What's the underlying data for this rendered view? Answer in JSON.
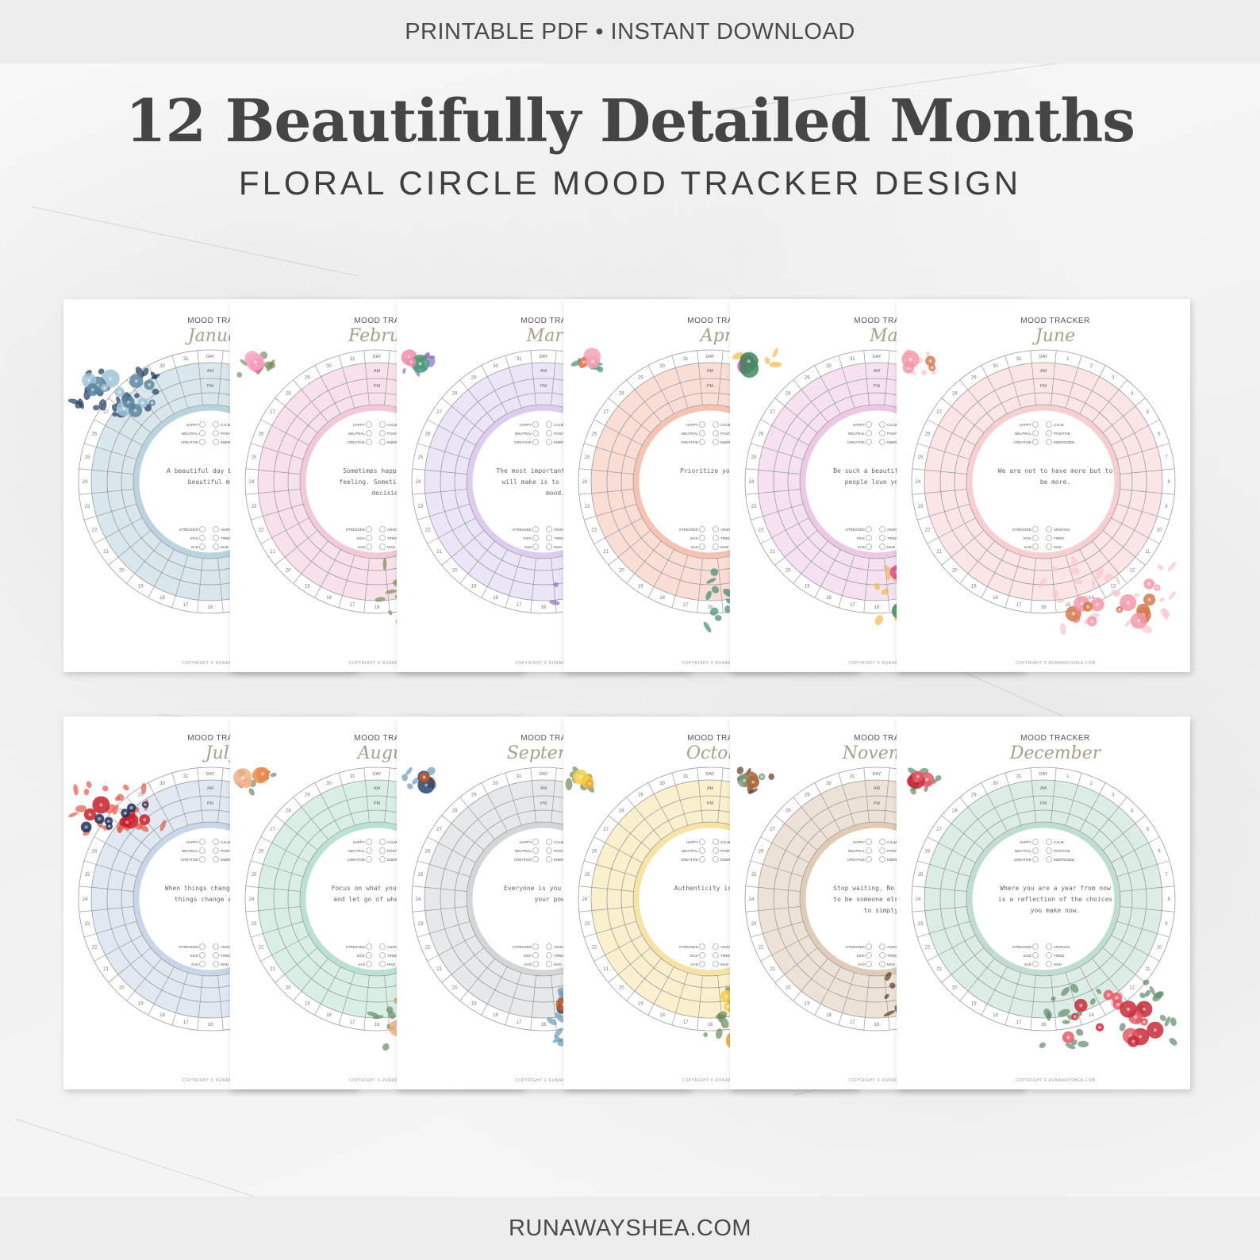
{
  "banner": {
    "top_text": "PRINTABLE PDF • INSTANT DOWNLOAD",
    "bottom_text": "RUNAWAYSHEA.COM"
  },
  "headline": "12 Beautifully Detailed Months",
  "subheadline": "FLORAL CIRCLE MOOD TRACKER DESIGN",
  "tracker": {
    "title": "MOOD TRACKER",
    "ring_labels": {
      "day": "DAY",
      "am": "AM",
      "pm": "PM"
    },
    "moods_top": [
      "HAPPY",
      "CALM",
      "NEUTRAL",
      "POSITIVE",
      "CREATIVE",
      "ENERGIZED"
    ],
    "moods_bottom": [
      "STRESSED",
      "ANXIOUS",
      "SICK",
      "TIRED",
      "SAD",
      "MAD"
    ],
    "copyright": "COPYRIGHT © RUNAWAYSHEA.COM"
  },
  "months": [
    {
      "name": "January",
      "quote": "A beautiful day begins with a beautiful mindset.",
      "ring_color": "#b9d3df",
      "flower_colors": [
        "#5b86a0",
        "#9fc3d6",
        "#1f3b5c"
      ]
    },
    {
      "name": "February",
      "quote": "Sometimes happiness is a feeling. Sometimes it is a decision.",
      "ring_color": "#f2c9da",
      "flower_colors": [
        "#e4508a",
        "#f6a9c6",
        "#7a8f5a"
      ]
    },
    {
      "name": "March",
      "quote": "The most important decision you will make is to be in a good mood.",
      "ring_color": "#dccdf0",
      "flower_colors": [
        "#4f9a78",
        "#f08cae",
        "#8a6fc4"
      ]
    },
    {
      "name": "April",
      "quote": "Prioritize your peace.",
      "ring_color": "#f6c3b2",
      "flower_colors": [
        "#e8784f",
        "#f2a6b8",
        "#3f8a70"
      ]
    },
    {
      "name": "May",
      "quote": "Be such a beautiful soul that people love your vibes.",
      "ring_color": "#ecc8e4",
      "flower_colors": [
        "#d94a8c",
        "#3d8b62",
        "#f2b84b"
      ]
    },
    {
      "name": "June",
      "quote": "We are not to have more but to be more.",
      "ring_color": "#f7cfd1",
      "flower_colors": [
        "#f39aaa",
        "#d27a4f",
        "#f7c7cf"
      ]
    },
    {
      "name": "July",
      "quote": "When things change inside you, things change around you.",
      "ring_color": "#c9d6e8",
      "flower_colors": [
        "#c81e2c",
        "#1e2f5c",
        "#e35a4a"
      ]
    },
    {
      "name": "August",
      "quote": "Focus on what you can control, and let go of what you can't.",
      "ring_color": "#b9e2d2",
      "flower_colors": [
        "#e98a4f",
        "#f2b08a",
        "#6c8a68"
      ]
    },
    {
      "name": "September",
      "quote": "Everyone is you and that is your power.",
      "ring_color": "#d3d6d8",
      "flower_colors": [
        "#24476e",
        "#c65a2a",
        "#6e9bb5"
      ]
    },
    {
      "name": "October",
      "quote": "Authenticity is magnetic.",
      "ring_color": "#f7e3a4",
      "flower_colors": [
        "#f0a02f",
        "#f5cf47",
        "#6f8a5a"
      ]
    },
    {
      "name": "November",
      "quote": "Stop waiting. No more waiting to be someone else. It's time to simply be.",
      "ring_color": "#dfcbb6",
      "flower_colors": [
        "#a8673a",
        "#7f9b7b",
        "#5c3b2a"
      ]
    },
    {
      "name": "December",
      "quote": "Where you are a year from now is a reflection of the choices you make now.",
      "ring_color": "#bfded0",
      "flower_colors": [
        "#c62c3a",
        "#e45a66",
        "#5f8a6a"
      ]
    }
  ]
}
